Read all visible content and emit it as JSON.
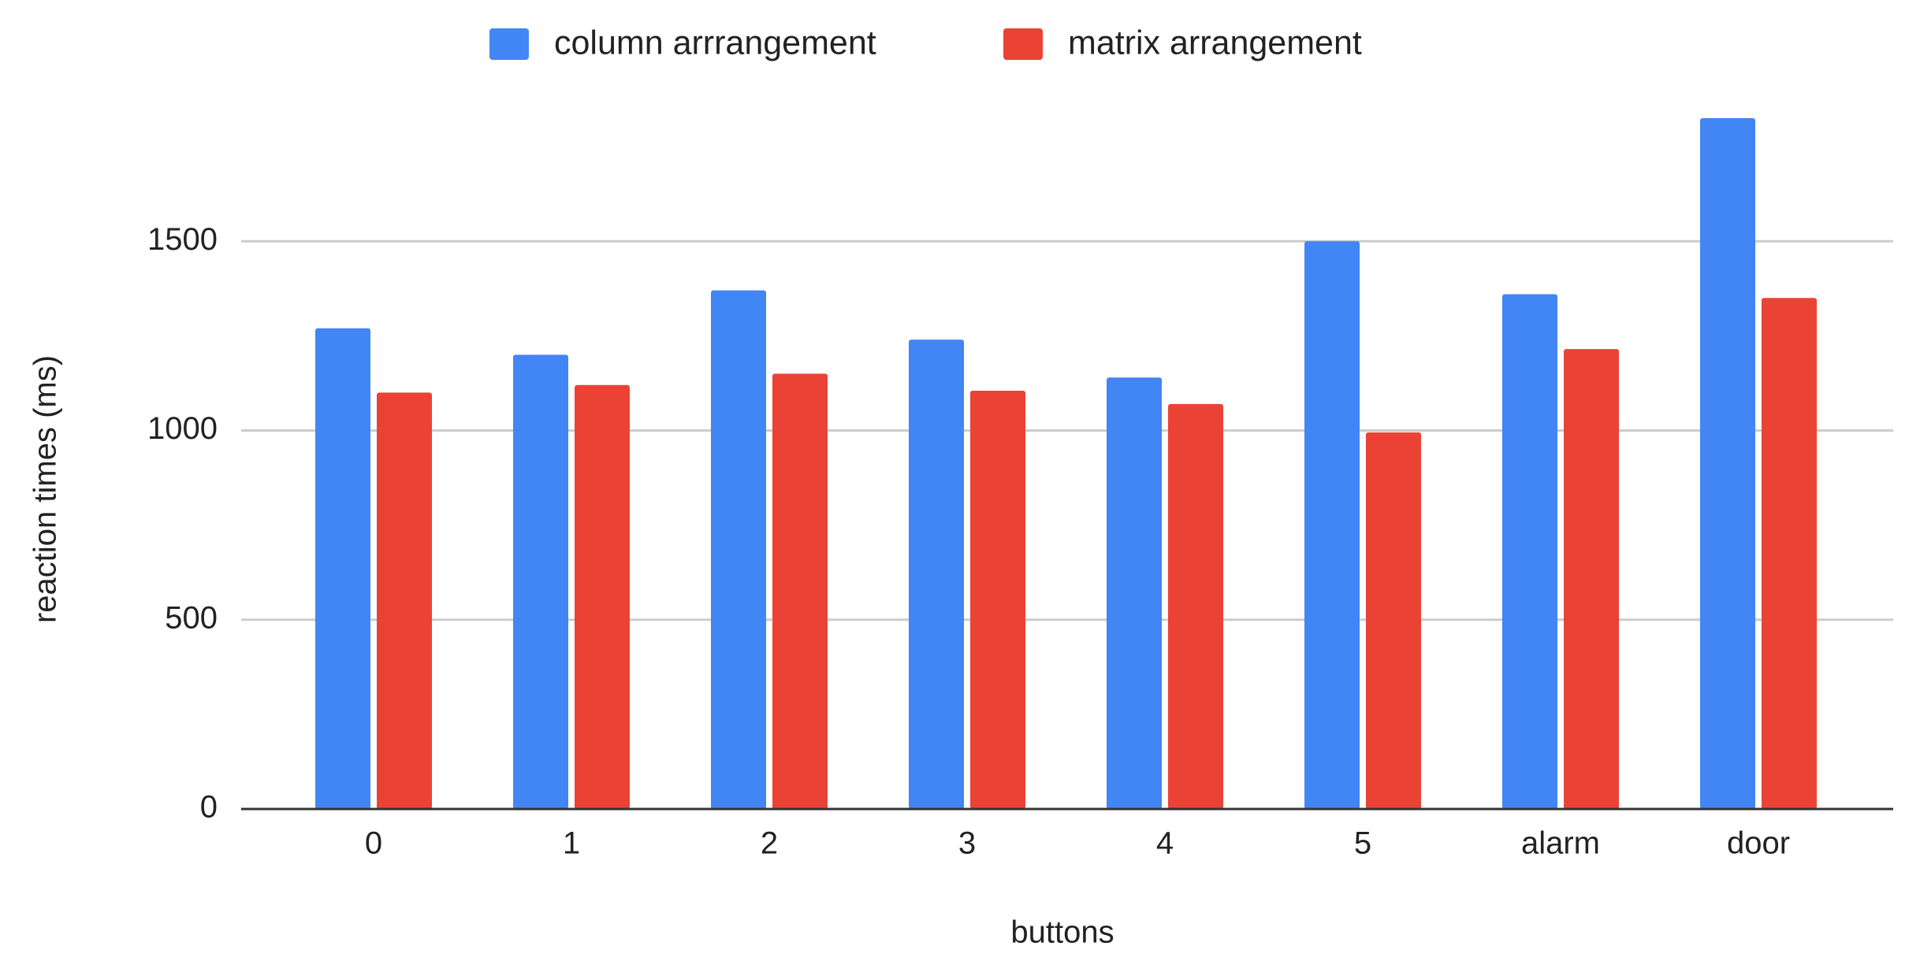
{
  "chart_data": {
    "type": "bar",
    "x_label": "buttons",
    "y_label": "reaction times (ms)",
    "categories": [
      "0",
      "1",
      "2",
      "3",
      "4",
      "5",
      "alarm",
      "door"
    ],
    "series": [
      {
        "name": "column arrrangement",
        "color": "#4285f4",
        "values": [
          1270,
          1200,
          1370,
          1240,
          1140,
          1500,
          1360,
          1825
        ]
      },
      {
        "name": "matrix arrangement",
        "color": "#ea4335",
        "values": [
          1100,
          1120,
          1150,
          1105,
          1070,
          995,
          1215,
          1350
        ]
      }
    ],
    "ylim": [
      0,
      1900
    ],
    "yticks": [
      0,
      500,
      1000,
      1500
    ],
    "grid": true,
    "legend": "top"
  }
}
